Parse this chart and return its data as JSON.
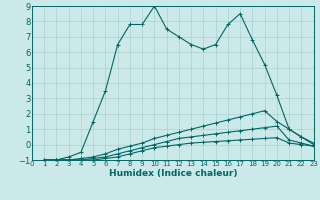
{
  "xlabel": "Humidex (Indice chaleur)",
  "background_color": "#cce9e9",
  "grid_color": "#aad0d0",
  "line_color": "#006666",
  "xlim": [
    0,
    23
  ],
  "ylim": [
    -1,
    9
  ],
  "xticks": [
    0,
    1,
    2,
    3,
    4,
    5,
    6,
    7,
    8,
    9,
    10,
    11,
    12,
    13,
    14,
    15,
    16,
    17,
    18,
    19,
    20,
    21,
    22,
    23
  ],
  "yticks": [
    -1,
    0,
    1,
    2,
    3,
    4,
    5,
    6,
    7,
    8,
    9
  ],
  "series": [
    [
      [
        1,
        -1
      ],
      [
        2,
        -1
      ],
      [
        3,
        -0.8
      ],
      [
        4,
        -0.5
      ],
      [
        5,
        1.5
      ],
      [
        6,
        3.5
      ],
      [
        7,
        6.5
      ],
      [
        8,
        7.8
      ],
      [
        9,
        7.8
      ],
      [
        10,
        9.0
      ],
      [
        11,
        7.5
      ],
      [
        12,
        7.0
      ],
      [
        13,
        6.5
      ],
      [
        14,
        6.2
      ],
      [
        15,
        6.5
      ],
      [
        16,
        7.8
      ],
      [
        17,
        8.5
      ],
      [
        18,
        6.8
      ],
      [
        19,
        5.2
      ],
      [
        20,
        3.2
      ],
      [
        21,
        1.0
      ],
      [
        22,
        0.5
      ],
      [
        23,
        0.1
      ]
    ],
    [
      [
        1,
        -1
      ],
      [
        2,
        -1
      ],
      [
        3,
        -1
      ],
      [
        4,
        -0.9
      ],
      [
        5,
        -0.8
      ],
      [
        6,
        -0.6
      ],
      [
        7,
        -0.3
      ],
      [
        8,
        -0.1
      ],
      [
        9,
        0.1
      ],
      [
        10,
        0.4
      ],
      [
        11,
        0.6
      ],
      [
        12,
        0.8
      ],
      [
        13,
        1.0
      ],
      [
        14,
        1.2
      ],
      [
        15,
        1.4
      ],
      [
        16,
        1.6
      ],
      [
        17,
        1.8
      ],
      [
        18,
        2.0
      ],
      [
        19,
        2.2
      ],
      [
        20,
        1.5
      ],
      [
        21,
        1.0
      ],
      [
        22,
        0.5
      ],
      [
        23,
        0.0
      ]
    ],
    [
      [
        1,
        -1
      ],
      [
        2,
        -1
      ],
      [
        3,
        -1
      ],
      [
        4,
        -1
      ],
      [
        5,
        -0.9
      ],
      [
        6,
        -0.8
      ],
      [
        7,
        -0.6
      ],
      [
        8,
        -0.4
      ],
      [
        9,
        -0.2
      ],
      [
        10,
        0.0
      ],
      [
        11,
        0.2
      ],
      [
        12,
        0.4
      ],
      [
        13,
        0.5
      ],
      [
        14,
        0.6
      ],
      [
        15,
        0.7
      ],
      [
        16,
        0.8
      ],
      [
        17,
        0.9
      ],
      [
        18,
        1.0
      ],
      [
        19,
        1.1
      ],
      [
        20,
        1.2
      ],
      [
        21,
        0.3
      ],
      [
        22,
        0.1
      ],
      [
        23,
        -0.1
      ]
    ],
    [
      [
        1,
        -1
      ],
      [
        2,
        -1
      ],
      [
        3,
        -1
      ],
      [
        4,
        -1
      ],
      [
        5,
        -1
      ],
      [
        6,
        -0.9
      ],
      [
        7,
        -0.8
      ],
      [
        8,
        -0.6
      ],
      [
        9,
        -0.4
      ],
      [
        10,
        -0.2
      ],
      [
        11,
        -0.1
      ],
      [
        12,
        0.0
      ],
      [
        13,
        0.1
      ],
      [
        14,
        0.15
      ],
      [
        15,
        0.2
      ],
      [
        16,
        0.25
      ],
      [
        17,
        0.3
      ],
      [
        18,
        0.35
      ],
      [
        19,
        0.4
      ],
      [
        20,
        0.45
      ],
      [
        21,
        0.1
      ],
      [
        22,
        0.0
      ],
      [
        23,
        -0.1
      ]
    ]
  ]
}
